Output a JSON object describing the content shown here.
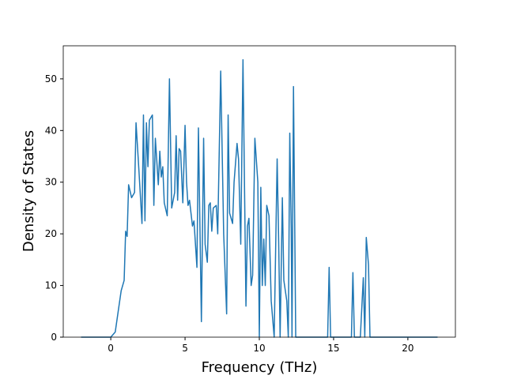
{
  "chart_data": {
    "type": "line",
    "xlabel": "Frequency (THz)",
    "ylabel": "Density of States",
    "x": [
      -2,
      0,
      0.3,
      0.5,
      0.7,
      0.9,
      1.0,
      1.1,
      1.2,
      1.4,
      1.6,
      1.7,
      1.9,
      2.1,
      2.2,
      2.3,
      2.4,
      2.5,
      2.6,
      2.8,
      2.9,
      3.0,
      3.2,
      3.3,
      3.4,
      3.5,
      3.6,
      3.8,
      3.95,
      4.1,
      4.3,
      4.4,
      4.5,
      4.6,
      4.7,
      4.85,
      5.0,
      5.1,
      5.2,
      5.3,
      5.5,
      5.6,
      5.8,
      5.9,
      6.1,
      6.25,
      6.35,
      6.5,
      6.6,
      6.7,
      6.8,
      6.9,
      7.1,
      7.2,
      7.4,
      7.6,
      7.8,
      7.9,
      8.0,
      8.2,
      8.3,
      8.5,
      8.6,
      8.75,
      8.9,
      9.1,
      9.2,
      9.3,
      9.45,
      9.55,
      9.7,
      9.9,
      10.0,
      10.1,
      10.2,
      10.3,
      10.4,
      10.5,
      10.65,
      10.8,
      11.0,
      11.2,
      11.3,
      11.4,
      11.55,
      11.65,
      11.85,
      11.95,
      12.05,
      12.15,
      12.2,
      12.3,
      12.45,
      14.6,
      14.7,
      14.8,
      16.2,
      16.3,
      16.4,
      16.8,
      17.0,
      17.1,
      17.2,
      17.35,
      17.45,
      22
    ],
    "series": [
      {
        "color": "#1f77b4",
        "values": [
          0,
          0,
          1,
          5,
          9,
          11,
          20.5,
          19.5,
          29.5,
          27,
          28,
          41.5,
          32,
          22,
          43,
          22.5,
          41.5,
          33,
          42,
          43,
          25.5,
          38.5,
          29.5,
          36,
          31,
          33,
          26,
          23.5,
          50,
          25,
          28,
          39,
          26.5,
          36.5,
          36,
          26,
          41,
          30,
          25.5,
          26.5,
          21.5,
          22.5,
          13.5,
          40.5,
          3,
          38.5,
          18,
          14.5,
          25.5,
          26,
          20.5,
          25,
          25.5,
          20,
          51.5,
          20,
          4.5,
          43,
          24,
          22,
          30,
          37.5,
          34.5,
          18,
          53.7,
          6,
          21.5,
          23,
          10,
          12,
          38.5,
          30,
          0,
          29,
          10,
          19,
          10,
          25.5,
          23.5,
          7,
          0,
          34.5,
          19,
          0,
          27,
          11,
          7,
          0,
          39.5,
          21,
          0,
          48.5,
          0,
          0,
          13.5,
          0,
          0,
          12.5,
          0,
          0,
          11.5,
          0,
          19.3,
          14,
          0,
          0
        ]
      }
    ],
    "xlim": [
      -3.2,
      23.2
    ],
    "ylim": [
      0,
      56.4
    ],
    "xticks": [
      0,
      5,
      10,
      15,
      20
    ],
    "yticks": [
      0,
      10,
      20,
      30,
      40,
      50
    ]
  }
}
